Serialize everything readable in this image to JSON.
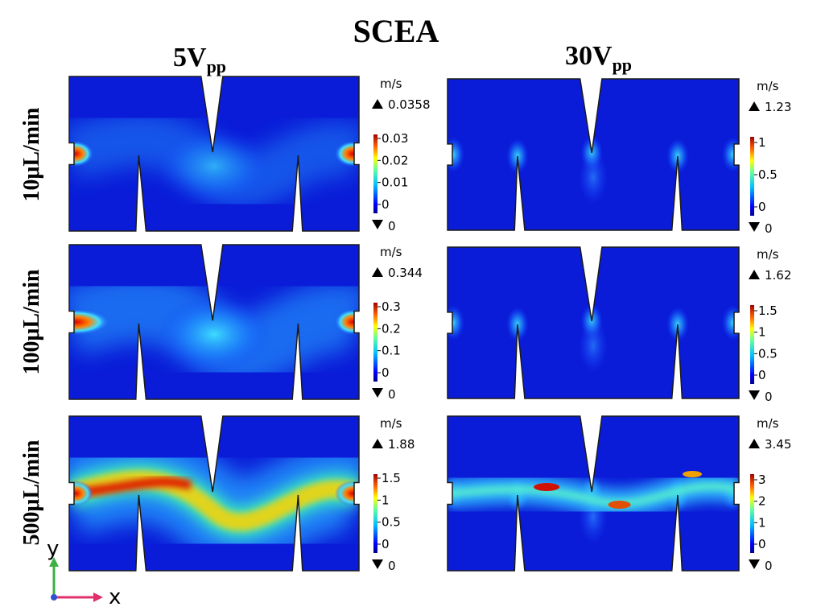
{
  "title": "SCEA",
  "columns": [
    {
      "label": "5V",
      "subscript": "pp"
    },
    {
      "label": "30V",
      "subscript": "pp"
    }
  ],
  "rows": [
    {
      "label": "10μL/min"
    },
    {
      "label": "100μL/min"
    },
    {
      "label": "500μL/min"
    }
  ],
  "panels": [
    {
      "unit": "m/s",
      "max": "0.0358",
      "min": "0",
      "ticks": [
        "0.03",
        "0.02",
        "0.01",
        "0"
      ]
    },
    {
      "unit": "m/s",
      "max": "1.23",
      "min": "0",
      "ticks": [
        "1",
        "0.5",
        "0"
      ]
    },
    {
      "unit": "m/s",
      "max": "0.344",
      "min": "0",
      "ticks": [
        "0.3",
        "0.2",
        "0.1",
        "0"
      ]
    },
    {
      "unit": "m/s",
      "max": "1.62",
      "min": "0",
      "ticks": [
        "1.5",
        "1",
        "0.5",
        "0"
      ]
    },
    {
      "unit": "m/s",
      "max": "1.88",
      "min": "0",
      "ticks": [
        "1.5",
        "1",
        "0.5",
        "0"
      ]
    },
    {
      "unit": "m/s",
      "max": "3.45",
      "min": "0",
      "ticks": [
        "3",
        "2",
        "1",
        "0"
      ]
    }
  ],
  "axes": {
    "y": "y",
    "x": "x"
  },
  "colors": {
    "colormap": [
      "#00008f",
      "#0000ff",
      "#00a0ff",
      "#40ffbf",
      "#ffff00",
      "#ff8000",
      "#d00000",
      "#800000"
    ]
  }
}
